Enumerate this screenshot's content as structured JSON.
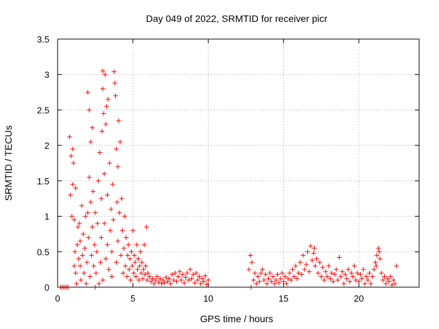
{
  "chart_data": {
    "type": "scatter",
    "title": "Day 049 of 2022, SRMTID for receiver picr",
    "xlabel": "GPS time / hours",
    "ylabel": "SRMTID / TECUs",
    "xlim": [
      0,
      24
    ],
    "ylim": [
      0,
      3.5
    ],
    "xticks": [
      0,
      5,
      10,
      15,
      20
    ],
    "xtick_labels": [
      "0",
      "5",
      "10",
      "15",
      "20"
    ],
    "yticks": [
      0,
      0.5,
      1,
      1.5,
      2,
      2.5,
      3,
      3.5
    ],
    "ytick_labels": [
      "0",
      "0.5",
      "1",
      "1.5",
      "2",
      "2.5",
      "3",
      "3.5"
    ],
    "grid": true,
    "marker": "+",
    "color": "#ff0000",
    "series": [
      {
        "name": "SRMTID",
        "points": [
          [
            0.2,
            0.0
          ],
          [
            0.3,
            0.0
          ],
          [
            0.4,
            0.0
          ],
          [
            0.5,
            0.0
          ],
          [
            0.6,
            0.0
          ],
          [
            0.7,
            0.0
          ],
          [
            0.8,
            2.12
          ],
          [
            0.85,
            1.3
          ],
          [
            0.9,
            1.85
          ],
          [
            0.95,
            1.0
          ],
          [
            1.0,
            1.95
          ],
          [
            1.0,
            1.45
          ],
          [
            1.05,
            1.75
          ],
          [
            1.1,
            0.95
          ],
          [
            1.1,
            0.3
          ],
          [
            1.15,
            0.5
          ],
          [
            1.2,
            1.4
          ],
          [
            1.2,
            0.2
          ],
          [
            1.25,
            0.05
          ],
          [
            1.3,
            0.6
          ],
          [
            1.35,
            0.85
          ],
          [
            1.4,
            0.4
          ],
          [
            1.45,
            0.9
          ],
          [
            1.5,
            0.3
          ],
          [
            1.5,
            0.65
          ],
          [
            1.55,
            0.1
          ],
          [
            1.6,
            1.15
          ],
          [
            1.65,
            0.45
          ],
          [
            1.7,
            0.75
          ],
          [
            1.75,
            0.2
          ],
          [
            1.8,
            0.55
          ],
          [
            1.85,
            1.0
          ],
          [
            1.9,
            0.05
          ],
          [
            1.95,
            0.35
          ],
          [
            2.0,
            2.75
          ],
          [
            2.0,
            1.05
          ],
          [
            2.05,
            0.7
          ],
          [
            2.1,
            2.5
          ],
          [
            2.1,
            1.55
          ],
          [
            2.15,
            0.15
          ],
          [
            2.2,
            2.05
          ],
          [
            2.2,
            1.2
          ],
          [
            2.25,
            0.45
          ],
          [
            2.3,
            2.25
          ],
          [
            2.3,
            0.85
          ],
          [
            2.35,
            1.35
          ],
          [
            2.4,
            0.3
          ],
          [
            2.45,
            0.6
          ],
          [
            2.5,
            0.0
          ],
          [
            2.5,
            1.05
          ],
          [
            2.55,
            0.2
          ],
          [
            2.6,
            0.5
          ],
          [
            2.65,
            0.9
          ],
          [
            2.7,
            1.5
          ],
          [
            2.75,
            0.05
          ],
          [
            2.8,
            1.9
          ],
          [
            2.85,
            0.35
          ],
          [
            2.9,
            1.25
          ],
          [
            2.9,
            0.7
          ],
          [
            2.95,
            2.2
          ],
          [
            3.0,
            3.05
          ],
          [
            3.0,
            2.8
          ],
          [
            3.0,
            0.1
          ],
          [
            3.05,
            2.45
          ],
          [
            3.1,
            1.6
          ],
          [
            3.1,
            0.9
          ],
          [
            3.15,
            3.0
          ],
          [
            3.2,
            2.3
          ],
          [
            3.2,
            0.4
          ],
          [
            3.25,
            2.55
          ],
          [
            3.3,
            1.3
          ],
          [
            3.3,
            0.6
          ],
          [
            3.35,
            2.65
          ],
          [
            3.4,
            0.25
          ],
          [
            3.45,
            1.75
          ],
          [
            3.5,
            0.8
          ],
          [
            3.55,
            1.1
          ],
          [
            3.6,
            0.15
          ],
          [
            3.6,
            0.5
          ],
          [
            3.65,
            1.45
          ],
          [
            3.7,
            0.95
          ],
          [
            3.75,
            3.04
          ],
          [
            3.8,
            2.88
          ],
          [
            3.85,
            2.7
          ],
          [
            3.9,
            1.95
          ],
          [
            3.9,
            0.35
          ],
          [
            3.95,
            1.2
          ],
          [
            4.0,
            1.7
          ],
          [
            4.0,
            0.65
          ],
          [
            4.05,
            2.35
          ],
          [
            4.1,
            1.05
          ],
          [
            4.15,
            2.05
          ],
          [
            4.2,
            0.45
          ],
          [
            4.25,
            1.25
          ],
          [
            4.3,
            0.8
          ],
          [
            4.35,
            0.2
          ],
          [
            4.4,
            0.55
          ],
          [
            4.45,
            1.0
          ],
          [
            4.5,
            0.3
          ],
          [
            4.55,
            0.7
          ],
          [
            4.6,
            0.15
          ],
          [
            4.65,
            0.45
          ],
          [
            4.7,
            0.6
          ],
          [
            4.75,
            0.25
          ],
          [
            4.8,
            0.4
          ],
          [
            4.85,
            0.1
          ],
          [
            4.9,
            0.5
          ],
          [
            4.95,
            0.3
          ],
          [
            5.0,
            0.8
          ],
          [
            5.05,
            0.2
          ],
          [
            5.1,
            0.45
          ],
          [
            5.15,
            0.35
          ],
          [
            5.2,
            0.15
          ],
          [
            5.25,
            0.6
          ],
          [
            5.3,
            0.25
          ],
          [
            5.35,
            0.4
          ],
          [
            5.4,
            0.1
          ],
          [
            5.45,
            0.3
          ],
          [
            5.5,
            0.5
          ],
          [
            5.55,
            0.2
          ],
          [
            5.6,
            0.35
          ],
          [
            5.65,
            0.12
          ],
          [
            5.7,
            0.25
          ],
          [
            5.75,
            0.6
          ],
          [
            5.8,
            0.18
          ],
          [
            5.85,
            0.3
          ],
          [
            5.9,
            0.85
          ],
          [
            5.95,
            0.1
          ],
          [
            6.0,
            0.2
          ],
          [
            6.1,
            0.15
          ],
          [
            6.2,
            0.08
          ],
          [
            6.3,
            0.12
          ],
          [
            6.4,
            0.05
          ],
          [
            6.5,
            0.1
          ],
          [
            6.6,
            0.15
          ],
          [
            6.7,
            0.07
          ],
          [
            6.8,
            0.12
          ],
          [
            6.9,
            0.05
          ],
          [
            7.0,
            0.1
          ],
          [
            7.1,
            0.06
          ],
          [
            7.2,
            0.14
          ],
          [
            7.3,
            0.08
          ],
          [
            7.4,
            0.12
          ],
          [
            7.5,
            0.05
          ],
          [
            7.6,
            0.18
          ],
          [
            7.7,
            0.1
          ],
          [
            7.8,
            0.2
          ],
          [
            7.9,
            0.08
          ],
          [
            8.0,
            0.15
          ],
          [
            8.1,
            0.22
          ],
          [
            8.2,
            0.1
          ],
          [
            8.3,
            0.18
          ],
          [
            8.4,
            0.06
          ],
          [
            8.5,
            0.14
          ],
          [
            8.6,
            0.2
          ],
          [
            8.7,
            0.1
          ],
          [
            8.8,
            0.25
          ],
          [
            8.9,
            0.12
          ],
          [
            9.0,
            0.18
          ],
          [
            9.1,
            0.06
          ],
          [
            9.2,
            0.2
          ],
          [
            9.3,
            0.1
          ],
          [
            9.4,
            0.15
          ],
          [
            9.5,
            0.05
          ],
          [
            9.6,
            0.12
          ],
          [
            9.7,
            0.08
          ],
          [
            9.8,
            0.16
          ],
          [
            9.9,
            0.04
          ],
          [
            10.0,
            0.1
          ],
          [
            12.7,
            0.25
          ],
          [
            12.8,
            0.45
          ],
          [
            12.85,
            0.0
          ],
          [
            12.9,
            0.35
          ],
          [
            13.0,
            0.1
          ],
          [
            13.1,
            0.2
          ],
          [
            13.2,
            0.05
          ],
          [
            13.3,
            0.15
          ],
          [
            13.4,
            0.08
          ],
          [
            13.5,
            0.2
          ],
          [
            13.6,
            0.25
          ],
          [
            13.7,
            0.1
          ],
          [
            13.8,
            0.18
          ],
          [
            13.9,
            0.05
          ],
          [
            14.0,
            0.12
          ],
          [
            14.1,
            0.2
          ],
          [
            14.2,
            0.08
          ],
          [
            14.3,
            0.15
          ],
          [
            14.4,
            0.05
          ],
          [
            14.5,
            0.1
          ],
          [
            14.6,
            0.18
          ],
          [
            14.7,
            0.06
          ],
          [
            14.8,
            0.12
          ],
          [
            14.9,
            0.2
          ],
          [
            15.0,
            0.08
          ],
          [
            15.1,
            0.15
          ],
          [
            15.2,
            0.05
          ],
          [
            15.3,
            0.12
          ],
          [
            15.4,
            0.2
          ],
          [
            15.5,
            0.1
          ],
          [
            15.6,
            0.25
          ],
          [
            15.7,
            0.15
          ],
          [
            15.8,
            0.3
          ],
          [
            15.9,
            0.12
          ],
          [
            16.0,
            0.2
          ],
          [
            16.1,
            0.35
          ],
          [
            16.2,
            0.18
          ],
          [
            16.3,
            0.45
          ],
          [
            16.4,
            0.25
          ],
          [
            16.5,
            0.32
          ],
          [
            16.6,
            0.5
          ],
          [
            16.7,
            0.22
          ],
          [
            16.8,
            0.58
          ],
          [
            16.9,
            0.38
          ],
          [
            17.0,
            0.48
          ],
          [
            17.05,
            0.55
          ],
          [
            17.1,
            0.3
          ],
          [
            17.2,
            0.4
          ],
          [
            17.3,
            0.2
          ],
          [
            17.4,
            0.35
          ],
          [
            17.5,
            0.15
          ],
          [
            17.6,
            0.28
          ],
          [
            17.7,
            0.1
          ],
          [
            17.8,
            0.22
          ],
          [
            17.9,
            0.15
          ],
          [
            18.0,
            0.3
          ],
          [
            18.1,
            0.12
          ],
          [
            18.2,
            0.2
          ],
          [
            18.3,
            0.08
          ],
          [
            18.4,
            0.18
          ],
          [
            18.5,
            0.25
          ],
          [
            18.6,
            0.1
          ],
          [
            18.7,
            0.42
          ],
          [
            18.8,
            0.15
          ],
          [
            18.9,
            0.22
          ],
          [
            19.0,
            0.05
          ],
          [
            19.1,
            0.18
          ],
          [
            19.2,
            0.12
          ],
          [
            19.3,
            0.25
          ],
          [
            19.4,
            0.08
          ],
          [
            19.5,
            0.2
          ],
          [
            19.6,
            0.15
          ],
          [
            19.7,
            0.3
          ],
          [
            19.8,
            0.1
          ],
          [
            19.9,
            0.2
          ],
          [
            20.0,
            0.08
          ],
          [
            20.1,
            0.18
          ],
          [
            20.2,
            0.12
          ],
          [
            20.3,
            0.25
          ],
          [
            20.4,
            0.05
          ],
          [
            20.5,
            0.15
          ],
          [
            20.6,
            0.1
          ],
          [
            20.7,
            0.2
          ],
          [
            20.8,
            0.05
          ],
          [
            20.9,
            0.15
          ],
          [
            21.0,
            0.25
          ],
          [
            21.1,
            0.35
          ],
          [
            21.15,
            0.3
          ],
          [
            21.2,
            0.45
          ],
          [
            21.3,
            0.55
          ],
          [
            21.35,
            0.5
          ],
          [
            21.4,
            0.4
          ],
          [
            21.5,
            0.2
          ],
          [
            21.6,
            0.1
          ],
          [
            21.7,
            0.15
          ],
          [
            21.8,
            0.05
          ],
          [
            21.9,
            0.12
          ],
          [
            22.0,
            0.08
          ],
          [
            22.1,
            0.15
          ],
          [
            22.2,
            0.03
          ],
          [
            22.3,
            0.1
          ],
          [
            22.4,
            0.05
          ],
          [
            22.5,
            0.3
          ]
        ]
      }
    ]
  }
}
